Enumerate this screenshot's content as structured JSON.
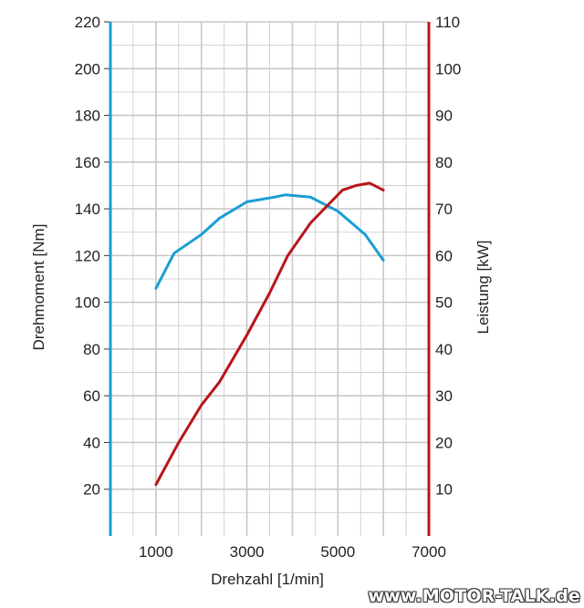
{
  "chart_data": {
    "type": "line",
    "xlabel": "Drehzahl [1/min]",
    "y_left_label": "Drehmoment [Nm]",
    "y_right_label": "Leistung [kW]",
    "xlim": [
      0,
      7000
    ],
    "x_ticks": [
      1000,
      3000,
      5000,
      7000
    ],
    "y_left_lim": [
      0,
      220
    ],
    "y_left_ticks": [
      20,
      40,
      60,
      80,
      100,
      120,
      140,
      160,
      180,
      200,
      220
    ],
    "y_right_lim": [
      0,
      110
    ],
    "y_right_ticks": [
      10,
      20,
      30,
      40,
      50,
      60,
      70,
      80,
      90,
      100,
      110
    ],
    "grid": true,
    "colors": {
      "torque": "#1a9ed4",
      "power": "#b8151b",
      "grid": "#c8c8c8"
    },
    "series": [
      {
        "axis": "left",
        "color": "#1a9ed4",
        "x": [
          1000,
          1400,
          2000,
          2400,
          3000,
          3600,
          3850,
          4400,
          5000,
          5600,
          6000
        ],
        "y": [
          106,
          121,
          129,
          136,
          143,
          145,
          146,
          145,
          139,
          129,
          118
        ]
      },
      {
        "axis": "right",
        "color": "#b8151b",
        "x": [
          1000,
          1500,
          2000,
          2400,
          3000,
          3500,
          3900,
          4400,
          4800,
          5100,
          5400,
          5700,
          6000
        ],
        "y": [
          11,
          20,
          28,
          33,
          43,
          52,
          60,
          67,
          71,
          74,
          75,
          75.5,
          74
        ]
      }
    ]
  },
  "watermark": "www.MOTOR-TALK.de"
}
